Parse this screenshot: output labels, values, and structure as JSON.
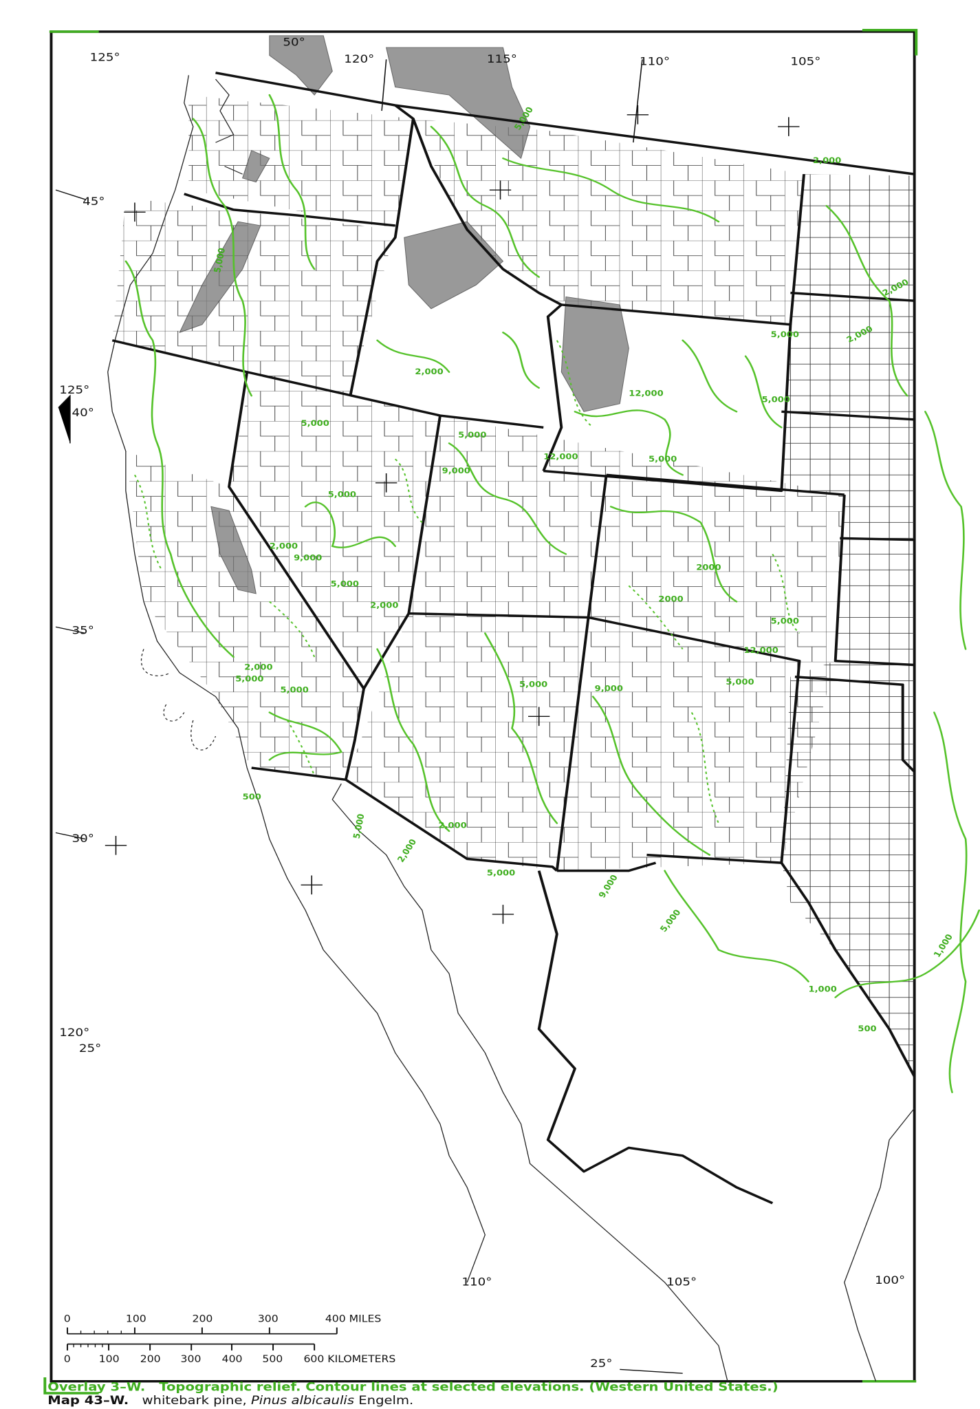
{
  "map": {
    "graticule_labels": [
      "125°",
      "50°",
      "120°",
      "115°",
      "110°",
      "105°",
      "45°",
      "125°",
      "40°",
      "35°",
      "30°",
      "120°",
      "25°",
      "110°",
      "105°",
      "25°",
      "100°"
    ],
    "contour_labels": [
      "2,000",
      "5,000",
      "12,000",
      "12,000",
      "5,000",
      "5,000",
      "9,000",
      "5,000",
      "5,000",
      "2,000",
      "9,000",
      "5,000",
      "2,000",
      "5,000",
      "2,000",
      "5,000",
      "2,000",
      "2000",
      "2000",
      "5,000",
      "12,000",
      "5,000",
      "9,000",
      "5,000",
      "2,000",
      "5,000",
      "5,000",
      "2,000",
      "5,000",
      "2,000",
      "9,000",
      "5,000",
      "1,000",
      "1,000",
      "500",
      "5,000",
      "2,000",
      "5,000",
      "500"
    ],
    "scale": {
      "miles": [
        "0",
        "100",
        "200",
        "300",
        "400 MILES"
      ],
      "kilometers": [
        "0",
        "100",
        "200",
        "300",
        "400",
        "500",
        "600 KILOMETERS"
      ]
    },
    "caption": {
      "overlay": "Overlay 3–W.",
      "overlay_text": "Topographic relief. Contour lines at selected elevations. (Western United States.)",
      "map": "Map 43–W.",
      "common_name": "whitebark pine,",
      "scientific_name": "Pinus albicaulis",
      "author": "Engelm."
    }
  }
}
